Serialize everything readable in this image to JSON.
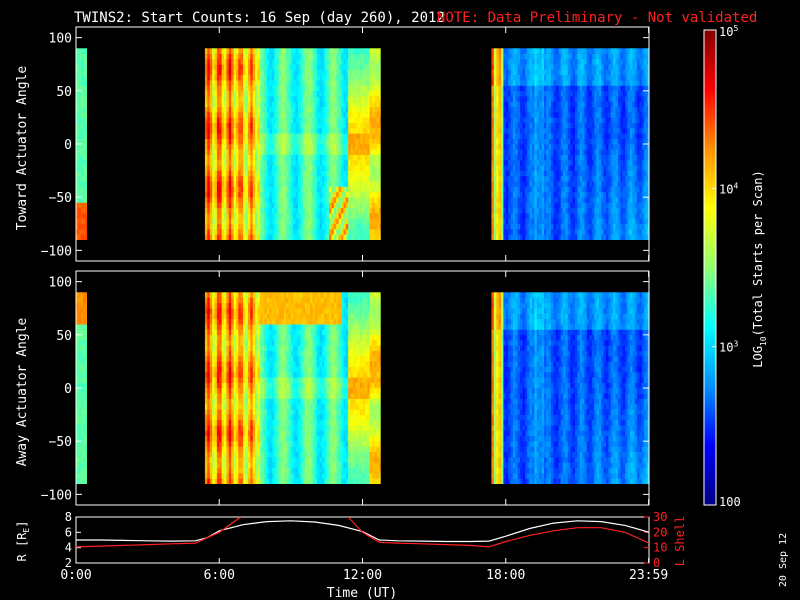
{
  "title": "TWINS2: Start Counts: 16 Sep (day 260), 2012",
  "note": "NOTE: Data Preliminary - Not validated",
  "colors": {
    "background": "#000000",
    "axes": "#ffffff",
    "note": "#ff2020",
    "r_line": "#ffffff",
    "lshell_line": "#ff2020"
  },
  "stamp": "20 Sep 12",
  "chart_data": [
    {
      "type": "heatmap",
      "panel": "top",
      "ylabel": "Toward Actuator Angle",
      "xlim": [
        0,
        24
      ],
      "ylim": [
        -110,
        110
      ],
      "yticks": [
        -100,
        -50,
        0,
        50,
        100
      ],
      "yticklabels": [
        "−100",
        "−50",
        "0",
        "50",
        "100"
      ],
      "data_y_range": [
        -90,
        90
      ],
      "data_time_blocks_hours": [
        [
          0,
          0.45
        ],
        [
          5.4,
          12.75
        ],
        [
          17.4,
          24
        ]
      ],
      "no_data_fill": "black",
      "xtick_hours": [
        0,
        6,
        12,
        18,
        23.983
      ],
      "grid": false
    },
    {
      "type": "heatmap",
      "panel": "bottom",
      "ylabel": "Away Actuator Angle",
      "xlim": [
        0,
        24
      ],
      "ylim": [
        -110,
        110
      ],
      "yticks": [
        -100,
        -50,
        0,
        50,
        100
      ],
      "yticklabels": [
        "−100",
        "−50",
        "0",
        "50",
        "100"
      ],
      "data_y_range": [
        -90,
        90
      ],
      "data_time_blocks_hours": [
        [
          0,
          0.45
        ],
        [
          5.4,
          12.75
        ],
        [
          17.4,
          24
        ]
      ],
      "no_data_fill": "black",
      "xtick_hours": [
        0,
        6,
        12,
        18,
        23.983
      ],
      "grid": false
    },
    {
      "type": "colorbar",
      "scale": "log",
      "range": [
        100,
        100000
      ],
      "ticks": [
        {
          "value": 100,
          "label": "100"
        },
        {
          "value": 1000,
          "base": "10",
          "exp": "3"
        },
        {
          "value": 10000,
          "base": "10",
          "exp": "4"
        },
        {
          "value": 100000,
          "base": "10",
          "exp": "5"
        }
      ],
      "label": "LOG",
      "label_sub": "10",
      "label_rest": "(Total Starts per Scan)",
      "colormap": [
        "#000080",
        "#0000ff",
        "#0090ff",
        "#00ffff",
        "#90ff70",
        "#ffff00",
        "#ff9000",
        "#ff0000",
        "#800000"
      ]
    },
    {
      "type": "line",
      "panel": "orbit",
      "xlabel": "Time (UT)",
      "xticklabels": [
        "0:00",
        "6:00",
        "12:00",
        "18:00",
        "23:59"
      ],
      "xtick_hours": [
        0,
        6,
        12,
        18,
        23.983
      ],
      "xlim": [
        0,
        24
      ],
      "left_axis": {
        "label": "R [R",
        "label_sub": "E",
        "label_end": "]",
        "ylim": [
          2,
          8
        ],
        "ticks": [
          2,
          4,
          6,
          8
        ],
        "ticklabels": [
          "2",
          "4",
          "6",
          "8"
        ]
      },
      "right_axis": {
        "label": "L Shell",
        "ylim": [
          0,
          30
        ],
        "ticks": [
          0,
          10,
          20,
          30
        ],
        "ticklabels": [
          "0",
          "10",
          "20",
          "30"
        ]
      },
      "series": [
        {
          "axis": "left",
          "color": "#ffffff",
          "x": [
            0,
            1,
            2,
            3,
            4,
            5,
            5.5,
            6,
            7,
            8,
            9,
            10,
            11,
            12,
            12.7,
            13.5,
            14.5,
            15.5,
            16.5,
            17.3,
            18,
            19,
            20,
            21,
            22,
            23,
            24
          ],
          "y": [
            5.0,
            5.0,
            4.95,
            4.9,
            4.85,
            4.9,
            5.3,
            6.2,
            7.0,
            7.4,
            7.5,
            7.35,
            6.9,
            6.1,
            5.0,
            4.9,
            4.85,
            4.8,
            4.8,
            4.85,
            5.5,
            6.5,
            7.2,
            7.5,
            7.4,
            6.9,
            6.0
          ]
        },
        {
          "axis": "right",
          "color": "#ff2020",
          "segments": [
            {
              "x": [
                0,
                1,
                2,
                3,
                4,
                5,
                6,
                6.9
              ],
              "y": [
                10.5,
                11.0,
                11.5,
                12.0,
                12.5,
                13.0,
                20.0,
                30
              ]
            },
            {
              "x": [
                11.4,
                12,
                12.7,
                13.5,
                14.5,
                15.5,
                16.5,
                17.3,
                18,
                19,
                20,
                21,
                22,
                23,
                24
              ],
              "y": [
                30,
                20.0,
                13.5,
                13.0,
                12.5,
                12.0,
                11.5,
                10.5,
                14.0,
                18.0,
                21.0,
                23.0,
                23.0,
                20.0,
                13.0
              ]
            }
          ]
        }
      ]
    }
  ]
}
